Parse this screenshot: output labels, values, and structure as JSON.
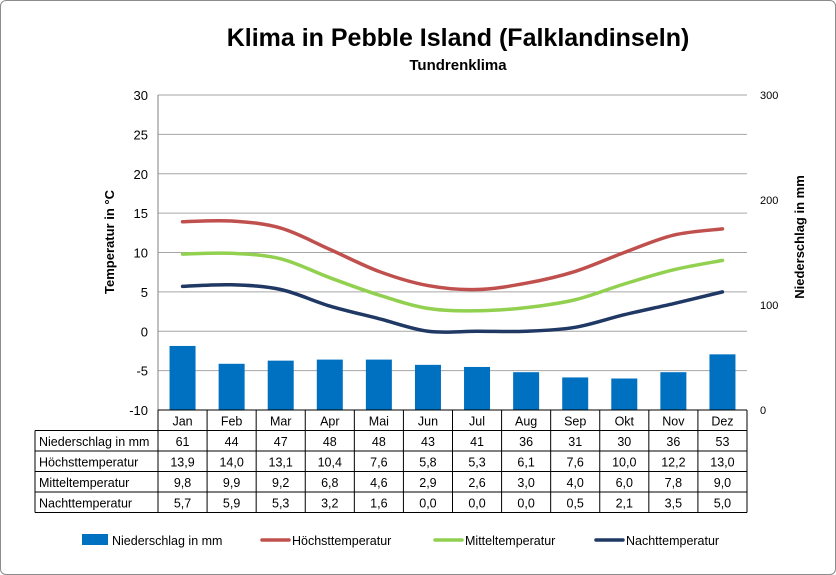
{
  "chart_data": {
    "type": "bar",
    "title": "Klima in Pebble Island (Falklandinseln)",
    "subtitle": "Tundrenklima",
    "categories": [
      "Jan",
      "Feb",
      "Mar",
      "Apr",
      "Mai",
      "Jun",
      "Jul",
      "Aug",
      "Sep",
      "Okt",
      "Nov",
      "Dez"
    ],
    "ylabel": "Temperatur in °C",
    "y2label": "Niederschlag in mm",
    "ylim": [
      -10,
      30
    ],
    "y2lim": [
      0,
      300
    ],
    "yticks": [
      "30",
      "25",
      "20",
      "15",
      "10",
      "5",
      "0",
      "-5",
      "-10"
    ],
    "y2ticks": [
      "300",
      "200",
      "100",
      "0"
    ],
    "legend_position": "bottom",
    "grid": "horizontal",
    "series": [
      {
        "name": "Niederschlag in mm",
        "type": "bar",
        "axis": "right",
        "color": "#0070C0",
        "values": [
          61,
          44,
          47,
          48,
          48,
          43,
          41,
          36,
          31,
          30,
          36,
          53
        ],
        "labels": [
          "61",
          "44",
          "47",
          "48",
          "48",
          "43",
          "41",
          "36",
          "31",
          "30",
          "36",
          "53"
        ]
      },
      {
        "name": "Höchsttemperatur",
        "type": "line",
        "axis": "left",
        "color": "#C0504D",
        "values": [
          13.9,
          14.0,
          13.1,
          10.4,
          7.6,
          5.8,
          5.3,
          6.1,
          7.6,
          10.0,
          12.2,
          13.0
        ],
        "labels": [
          "13,9",
          "14,0",
          "13,1",
          "10,4",
          "7,6",
          "5,8",
          "5,3",
          "6,1",
          "7,6",
          "10,0",
          "12,2",
          "13,0"
        ]
      },
      {
        "name": "Mitteltemperatur",
        "type": "line",
        "axis": "left",
        "color": "#92D050",
        "values": [
          9.8,
          9.9,
          9.2,
          6.8,
          4.6,
          2.9,
          2.6,
          3.0,
          4.0,
          6.0,
          7.8,
          9.0
        ],
        "labels": [
          "9,8",
          "9,9",
          "9,2",
          "6,8",
          "4,6",
          "2,9",
          "2,6",
          "3,0",
          "4,0",
          "6,0",
          "7,8",
          "9,0"
        ]
      },
      {
        "name": "Nachttemperatur",
        "type": "line",
        "axis": "left",
        "color": "#1F3864",
        "values": [
          5.7,
          5.9,
          5.3,
          3.2,
          1.6,
          0.0,
          0.0,
          0.0,
          0.5,
          2.1,
          3.5,
          5.0
        ],
        "labels": [
          "5,7",
          "5,9",
          "5,3",
          "3,2",
          "1,6",
          "0,0",
          "0,0",
          "0,0",
          "0,5",
          "2,1",
          "3,5",
          "5,0"
        ]
      }
    ]
  }
}
